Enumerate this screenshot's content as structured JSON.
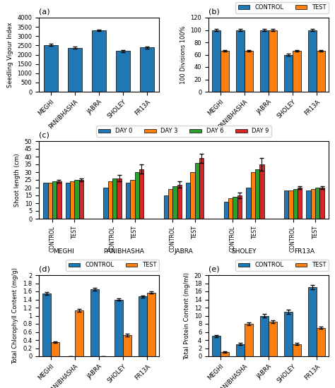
{
  "chart_data": [
    {
      "type": "bar",
      "title": "(a)",
      "categories": [
        "MEGHI",
        "PANIBHASHA",
        "JABRA",
        "SHOLEY",
        "FR13A"
      ],
      "values": [
        2530,
        2370,
        3320,
        2200,
        2390
      ],
      "errors": [
        60,
        50,
        40,
        50,
        50
      ],
      "color": "#1f77b4",
      "ylabel": "Seedling Vigour Index",
      "ylim": [
        0,
        4000
      ],
      "yticks": [
        0,
        500,
        1000,
        1500,
        2000,
        2500,
        3000,
        3500,
        4000
      ]
    },
    {
      "type": "bar",
      "title": "(b)",
      "categories": [
        "MEGHI",
        "PANIBHASHA",
        "JABRA",
        "SHOLEY",
        "FR13A"
      ],
      "series": [
        {
          "name": "CONTROL",
          "color": "#1f77b4",
          "values": [
            100,
            100,
            100,
            60,
            100
          ],
          "errors": [
            2,
            2,
            2,
            2,
            2
          ]
        },
        {
          "name": "TEST",
          "color": "#ff7f0e",
          "values": [
            66,
            66,
            100,
            66,
            66
          ],
          "errors": [
            1,
            1,
            2,
            1,
            1
          ]
        }
      ],
      "ylabel": "100 Divisions 100%",
      "ylim": [
        0,
        120
      ],
      "yticks": [
        0,
        20,
        40,
        60,
        80,
        100,
        120
      ],
      "legend": "upper right"
    },
    {
      "type": "bar",
      "title": "(c)",
      "categories": [
        "CONTROL",
        "TEST",
        "CONTROL",
        "TEST",
        "CONTROL",
        "TEST",
        "CONTROL",
        "TEST",
        "CONTROL",
        "TEST"
      ],
      "category_groups": [
        "MEGHI",
        "PANIBHASHA",
        "JABRA",
        "SHOLEY",
        "FR13A"
      ],
      "series": [
        {
          "name": "DAY 0",
          "color": "#1f77b4",
          "values": [
            23,
            23,
            20,
            23,
            15,
            23,
            11,
            20,
            18,
            18
          ]
        },
        {
          "name": "DAY 3",
          "color": "#ff7f0e",
          "values": [
            23,
            24,
            24,
            25,
            19,
            30,
            13,
            30,
            18,
            19
          ]
        },
        {
          "name": "DAY 6",
          "color": "#2ca02c",
          "values": [
            24,
            25,
            26,
            30,
            21,
            36,
            14,
            32,
            19,
            20
          ]
        },
        {
          "name": "DAY 9",
          "color": "#d62728",
          "values": [
            24,
            25,
            26,
            32,
            22,
            39,
            15,
            35,
            20,
            20
          ],
          "errors": [
            1,
            1,
            2,
            3,
            2,
            3,
            2,
            4,
            1,
            1
          ]
        }
      ],
      "ylabel": "Shoot length (cm)",
      "ylim": [
        0,
        50
      ],
      "yticks": [
        0,
        5,
        10,
        15,
        20,
        25,
        30,
        35,
        40,
        45,
        50
      ],
      "legend": "upper center"
    },
    {
      "type": "bar",
      "title": "(d)",
      "categories": [
        "MEGHI",
        "PANIBHASHA",
        "JABRA",
        "SHOLEY",
        "FR13A"
      ],
      "series": [
        {
          "name": "CONTROL",
          "color": "#1f77b4",
          "values": [
            1.55,
            0,
            1.65,
            1.4,
            1.47
          ],
          "errors": [
            0.03,
            0,
            0.03,
            0.03,
            0.03
          ]
        },
        {
          "name": "TEST",
          "color": "#ff7f0e",
          "values": [
            0.35,
            1.13,
            0,
            0.52,
            1.57
          ],
          "errors": [
            0.02,
            0.03,
            0,
            0.03,
            0.03
          ]
        }
      ],
      "ylabel": "Total Chlorophyll Content (mg/g)",
      "ylim": [
        0,
        2
      ],
      "yticks": [
        0,
        0.2,
        0.4,
        0.6,
        0.8,
        1,
        1.2,
        1.4,
        1.6,
        1.8,
        2
      ],
      "legend": "upper right"
    },
    {
      "type": "bar",
      "title": "(e)",
      "categories": [
        "MEGHI",
        "PANIBHASHA",
        "JABRA",
        "SHOLEY",
        "FR13A"
      ],
      "series": [
        {
          "name": "CONTROL",
          "color": "#1f77b4",
          "values": [
            5,
            3,
            10,
            11,
            17
          ],
          "errors": [
            0.3,
            0.3,
            0.5,
            0.5,
            0.5
          ]
        },
        {
          "name": "TEST",
          "color": "#ff7f0e",
          "values": [
            1,
            8,
            8.5,
            3,
            7
          ],
          "errors": [
            0.2,
            0.3,
            0.4,
            0.3,
            0.3
          ]
        }
      ],
      "ylabel": "Total Protein Content (mg/ml)",
      "ylim": [
        0,
        20
      ],
      "yticks": [
        0,
        2,
        4,
        6,
        8,
        10,
        12,
        14,
        16,
        18,
        20
      ],
      "legend": "upper right"
    }
  ]
}
